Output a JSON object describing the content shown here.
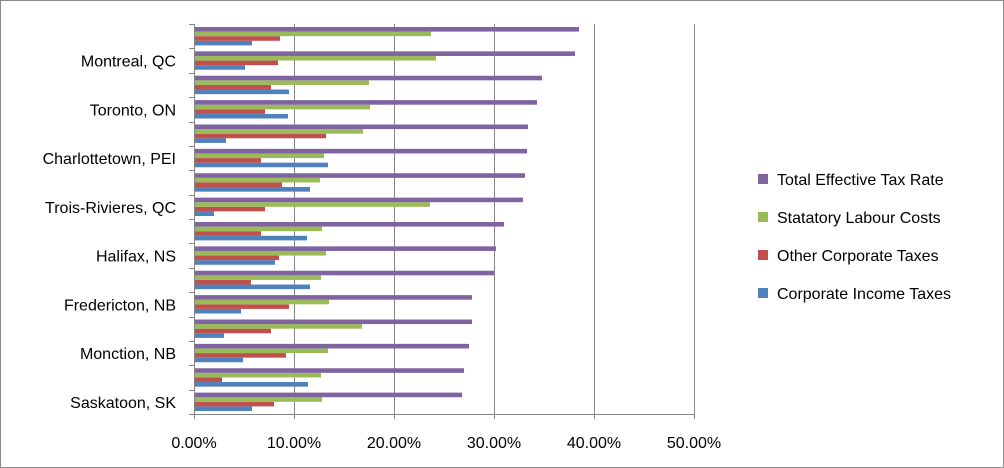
{
  "chart_data": {
    "type": "bar",
    "orientation": "horizontal",
    "title": "",
    "xlabel": "",
    "ylabel": "",
    "xlim": [
      0,
      0.5
    ],
    "x_ticks": [
      0,
      0.1,
      0.2,
      0.3,
      0.4,
      0.5
    ],
    "x_tick_labels": [
      "0.00%",
      "10.00%",
      "20.00%",
      "30.00%",
      "40.00%",
      "50.00%"
    ],
    "grid": "vertical",
    "legend_position": "right",
    "categories": [
      "Saskatoon, SK",
      "",
      "Monction, NB",
      "",
      "Fredericton, NB",
      "",
      "Halifax, NS",
      "",
      "Trois-Rivieres, QC",
      "",
      "Charlottetown, PEI",
      "",
      "Toronto, ON",
      "",
      "Montreal, QC",
      ""
    ],
    "series": [
      {
        "name": "Corporate Income Taxes",
        "color": "#4F81BD",
        "values": [
          0.058,
          0.114,
          0.049,
          0.03,
          0.047,
          0.116,
          0.081,
          0.113,
          0.02,
          0.116,
          0.134,
          0.032,
          0.094,
          0.095,
          0.051,
          0.058
        ]
      },
      {
        "name": "Other Corporate Taxes",
        "color": "#C0504D",
        "values": [
          0.08,
          0.028,
          0.092,
          0.077,
          0.095,
          0.057,
          0.085,
          0.067,
          0.071,
          0.088,
          0.067,
          0.132,
          0.071,
          0.077,
          0.084,
          0.086
        ]
      },
      {
        "name": "Statatory Labour Costs",
        "color": "#9BBB59",
        "values": [
          0.128,
          0.127,
          0.134,
          0.168,
          0.135,
          0.127,
          0.132,
          0.128,
          0.236,
          0.126,
          0.13,
          0.169,
          0.176,
          0.175,
          0.242,
          0.237
        ]
      },
      {
        "name": "Total Effective Tax Rate",
        "color": "#8064A2",
        "values": [
          0.268,
          0.27,
          0.275,
          0.278,
          0.278,
          0.3,
          0.302,
          0.31,
          0.329,
          0.331,
          0.333,
          0.334,
          0.343,
          0.348,
          0.381,
          0.385
        ]
      }
    ]
  },
  "colors": {
    "gridline": "#868686",
    "axis": "#868686"
  }
}
